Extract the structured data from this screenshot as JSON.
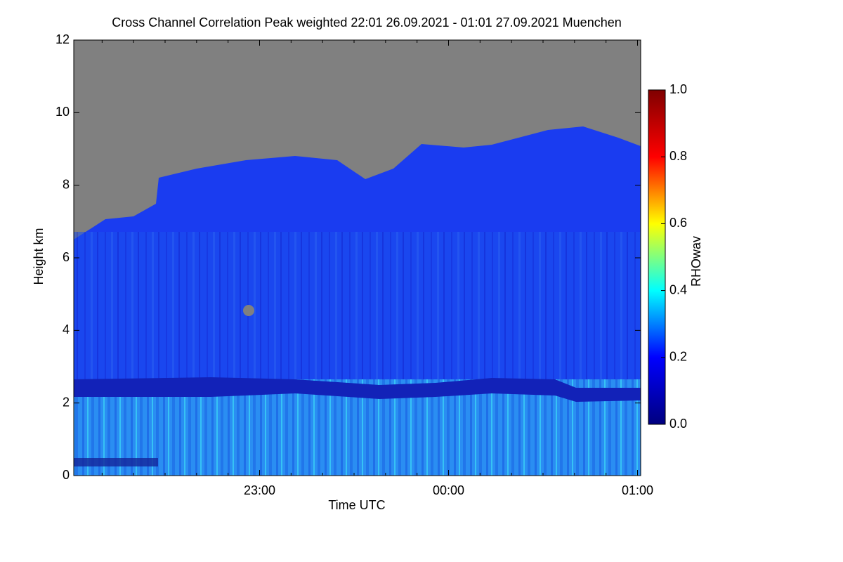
{
  "chart_data": {
    "type": "heatmap",
    "title": "Cross Channel Correlation Peak weighted   22:01 26.09.2021 - 01:01 27.09.2021 Muenchen",
    "x_label": "Time UTC",
    "y_label": "Height km",
    "xlim": [
      22.0167,
      25.0167
    ],
    "xticks": [
      {
        "value": 23,
        "label": "23:00"
      },
      {
        "value": 24,
        "label": "00:00"
      },
      {
        "value": 25,
        "label": "01:00"
      }
    ],
    "xminorticks": [
      22.1667,
      22.3333,
      22.5,
      22.6667,
      22.8333,
      23.1667,
      23.3333,
      23.5,
      23.6667,
      23.8333,
      24.1667,
      24.3333,
      24.5,
      24.6667,
      24.8333
    ],
    "ylim": [
      0,
      12
    ],
    "yticks": [
      0,
      2,
      4,
      6,
      8,
      10,
      12
    ],
    "colorbar": {
      "label": "RHOwav",
      "lim": [
        0,
        1
      ],
      "ticks": [
        {
          "value": 0,
          "label": "0.0"
        },
        {
          "value": 0.2,
          "label": "0.2"
        },
        {
          "value": 0.4,
          "label": "0.4"
        },
        {
          "value": 0.6,
          "label": "0.6"
        },
        {
          "value": 0.8,
          "label": "0.8"
        },
        {
          "value": 1,
          "label": "1.0"
        }
      ],
      "colors": [
        "#00007f",
        "#0000ff",
        "#00ffff",
        "#ffff00",
        "#ff0000",
        "#7f0000"
      ]
    }
  }
}
